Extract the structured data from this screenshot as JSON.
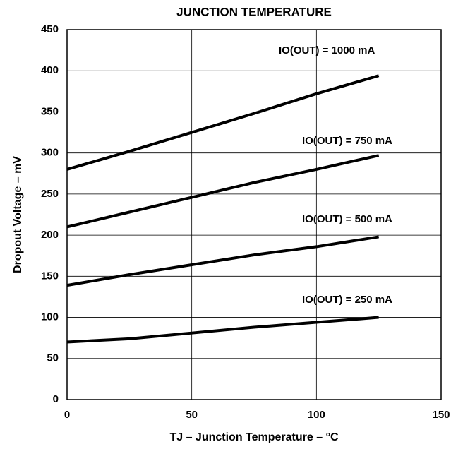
{
  "chart_data": {
    "type": "line",
    "title": "JUNCTION TEMPERATURE",
    "x_label": "TJ – Junction Temperature – °C",
    "y_label": "Dropout Voltage – mV",
    "x": [
      0,
      25,
      50,
      75,
      100,
      125
    ],
    "series": [
      {
        "name": "IO(OUT) = 1000 mA",
        "color": "#000000",
        "values": [
          280,
          302,
          325,
          348,
          372,
          394
        ]
      },
      {
        "name": "IO(OUT) = 750 mA",
        "color": "#000000",
        "values": [
          210,
          228,
          246,
          264,
          280,
          297
        ]
      },
      {
        "name": "IO(OUT) = 500 mA",
        "color": "#000000",
        "values": [
          139,
          152,
          164,
          176,
          186,
          198
        ]
      },
      {
        "name": "IO(OUT) = 250 mA",
        "color": "#000000",
        "values": [
          70,
          74,
          81,
          88,
          94,
          100
        ]
      }
    ],
    "xlim": [
      0,
      150
    ],
    "xticks": [
      0,
      50,
      100,
      150
    ],
    "ylim": [
      0,
      450
    ],
    "yticks": [
      0,
      50,
      100,
      150,
      200,
      250,
      300,
      350,
      400,
      450
    ],
    "grid": true
  }
}
